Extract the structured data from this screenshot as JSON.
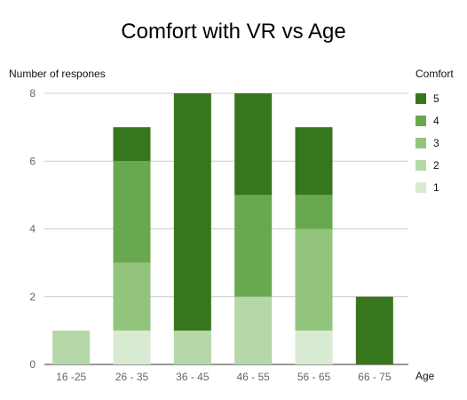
{
  "chart_data": {
    "type": "bar",
    "title": "Comfort with VR vs Age",
    "xlabel": "Age",
    "ylabel": "Number of respones",
    "categories": [
      "16 -25",
      "26 - 35",
      "36 - 45",
      "46 - 55",
      "56 - 65",
      "66 - 75"
    ],
    "ylim": [
      0,
      8
    ],
    "yticks": [
      0,
      2,
      4,
      6,
      8
    ],
    "stacked": true,
    "grid": true,
    "legend": {
      "title": "Comfort",
      "placement": "right"
    },
    "series": [
      {
        "name": "1",
        "values": [
          0,
          1,
          0,
          0,
          1,
          0
        ],
        "color": "#d9ead3"
      },
      {
        "name": "2",
        "values": [
          1,
          0,
          1,
          2,
          0,
          0
        ],
        "color": "#b6d7a8"
      },
      {
        "name": "3",
        "values": [
          0,
          2,
          0,
          0,
          3,
          0
        ],
        "color": "#93c47d"
      },
      {
        "name": "4",
        "values": [
          0,
          3,
          0,
          3,
          1,
          0
        ],
        "color": "#6aa84f"
      },
      {
        "name": "5",
        "values": [
          0,
          1,
          7,
          3,
          2,
          2
        ],
        "color": "#38761d"
      }
    ]
  }
}
